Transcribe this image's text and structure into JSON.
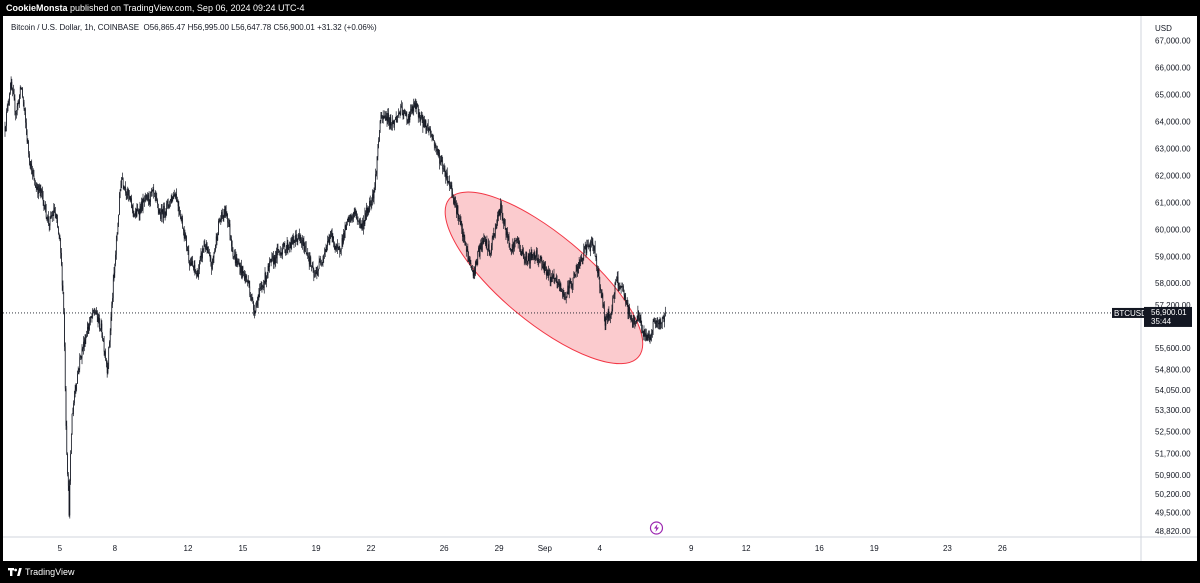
{
  "publisher": {
    "name": "CookieMonsta",
    "text": " published on TradingView.com, Sep 06, 2024 09:24 UTC-4"
  },
  "footer": {
    "brand": "TradingView"
  },
  "colors": {
    "candle": "#131722",
    "ellipse_fill": "#f7a1a5",
    "ellipse_stroke": "#f23645",
    "price_label_bg": "#131722",
    "event_icon": "#9c27b0"
  },
  "chart_data": {
    "type": "candlestick",
    "symbol_line": "Bitcoin / U.S. Dollar, 1h, COINBASE",
    "ohlc": {
      "O": "56,865.47",
      "H": "56,995.00",
      "L": "56,647.78",
      "C": "56,900.01",
      "change": "+31.32 (+0.06%)"
    },
    "currency": "USD",
    "ylim": [
      48600,
      67900
    ],
    "y_ticks": [
      "67,000.00",
      "66,000.00",
      "65,000.00",
      "64,000.00",
      "63,000.00",
      "62,000.00",
      "61,000.00",
      "60,000.00",
      "59,000.00",
      "58,000.00",
      "57,200.00",
      "55,600.00",
      "54,800.00",
      "54,050.00",
      "53,300.00",
      "52,500.00",
      "51,700.00",
      "50,900.00",
      "50,200.00",
      "49,500.00",
      "48,820.00"
    ],
    "x_range_days": [
      2.0,
      30.0
    ],
    "x_ticks": [
      {
        "label": "5",
        "day": 5
      },
      {
        "label": "8",
        "day": 8
      },
      {
        "label": "12",
        "day": 12
      },
      {
        "label": "15",
        "day": 15
      },
      {
        "label": "19",
        "day": 19
      },
      {
        "label": "22",
        "day": 22
      },
      {
        "label": "26",
        "day": 26
      },
      {
        "label": "29",
        "day": 29
      },
      {
        "label": "Sep",
        "day": 31.5
      },
      {
        "label": "4",
        "day": 34.5
      },
      {
        "label": "9",
        "day": 39.5
      },
      {
        "label": "12",
        "day": 42.5
      },
      {
        "label": "16",
        "day": 46.5
      },
      {
        "label": "19",
        "day": 49.5
      },
      {
        "label": "23",
        "day": 53.5
      },
      {
        "label": "26",
        "day": 56.5
      }
    ],
    "last_price": {
      "value": 56900.01,
      "symbol": "BTCUSD",
      "price_text": "56,900.01",
      "countdown": "35:44"
    },
    "highlight_ellipse": {
      "start": {
        "day": 27.2,
        "price": 60600
      },
      "end": {
        "day": 35.7,
        "price": 55800
      }
    },
    "price_path": [
      [
        2.0,
        63800
      ],
      [
        2.3,
        65400
      ],
      [
        2.6,
        64300
      ],
      [
        2.9,
        65300
      ],
      [
        3.3,
        62800
      ],
      [
        3.6,
        61700
      ],
      [
        4.0,
        61300
      ],
      [
        4.4,
        60200
      ],
      [
        4.7,
        60700
      ],
      [
        5.0,
        59500
      ],
      [
        5.2,
        57300
      ],
      [
        5.35,
        52300
      ],
      [
        5.5,
        49600
      ],
      [
        5.65,
        53000
      ],
      [
        5.85,
        54200
      ],
      [
        6.1,
        55200
      ],
      [
        6.5,
        56300
      ],
      [
        6.9,
        57000
      ],
      [
        7.3,
        56200
      ],
      [
        7.6,
        54800
      ],
      [
        7.9,
        57800
      ],
      [
        8.1,
        59600
      ],
      [
        8.35,
        62000
      ],
      [
        8.7,
        61300
      ],
      [
        9.1,
        60500
      ],
      [
        9.6,
        61000
      ],
      [
        10.1,
        61300
      ],
      [
        10.5,
        60500
      ],
      [
        10.9,
        60900
      ],
      [
        11.3,
        61400
      ],
      [
        11.7,
        60200
      ],
      [
        12.1,
        58800
      ],
      [
        12.5,
        58300
      ],
      [
        12.9,
        59500
      ],
      [
        13.3,
        58600
      ],
      [
        13.7,
        60300
      ],
      [
        14.1,
        60700
      ],
      [
        14.5,
        59000
      ],
      [
        14.9,
        58500
      ],
      [
        15.3,
        58000
      ],
      [
        15.6,
        57000
      ],
      [
        16.0,
        57800
      ],
      [
        16.5,
        58700
      ],
      [
        17.0,
        59200
      ],
      [
        17.5,
        59400
      ],
      [
        18.0,
        59700
      ],
      [
        18.5,
        59200
      ],
      [
        18.9,
        58200
      ],
      [
        19.3,
        58900
      ],
      [
        19.8,
        59800
      ],
      [
        20.2,
        59100
      ],
      [
        20.7,
        60200
      ],
      [
        21.1,
        60600
      ],
      [
        21.5,
        60100
      ],
      [
        21.9,
        60900
      ],
      [
        22.2,
        61500
      ],
      [
        22.5,
        64000
      ],
      [
        22.8,
        64200
      ],
      [
        23.2,
        63900
      ],
      [
        23.6,
        64400
      ],
      [
        24.0,
        64100
      ],
      [
        24.4,
        64600
      ],
      [
        24.8,
        64000
      ],
      [
        25.2,
        63700
      ],
      [
        25.6,
        62900
      ],
      [
        26.0,
        62200
      ],
      [
        26.4,
        61500
      ],
      [
        26.7,
        60700
      ],
      [
        27.0,
        59800
      ],
      [
        27.3,
        59000
      ],
      [
        27.6,
        58300
      ],
      [
        27.9,
        59200
      ],
      [
        28.2,
        59600
      ],
      [
        28.5,
        59100
      ],
      [
        28.8,
        60100
      ],
      [
        29.1,
        60800
      ],
      [
        29.4,
        59800
      ],
      [
        29.7,
        59300
      ],
      [
        30.0,
        59600
      ],
      [
        30.3,
        59000
      ],
      [
        30.6,
        58900
      ],
      [
        31.0,
        59100
      ],
      [
        31.4,
        58700
      ],
      [
        31.8,
        58200
      ],
      [
        32.2,
        58000
      ],
      [
        32.6,
        57500
      ],
      [
        33.0,
        58100
      ],
      [
        33.4,
        58700
      ],
      [
        33.8,
        59400
      ],
      [
        34.2,
        59300
      ],
      [
        34.5,
        58000
      ],
      [
        34.8,
        56600
      ],
      [
        35.1,
        56900
      ],
      [
        35.4,
        58100
      ],
      [
        35.7,
        57800
      ],
      [
        36.0,
        57100
      ],
      [
        36.3,
        56500
      ],
      [
        36.6,
        56800
      ],
      [
        36.9,
        56100
      ],
      [
        37.2,
        56000
      ],
      [
        37.5,
        56600
      ],
      [
        37.8,
        56400
      ],
      [
        38.1,
        56900
      ]
    ]
  }
}
